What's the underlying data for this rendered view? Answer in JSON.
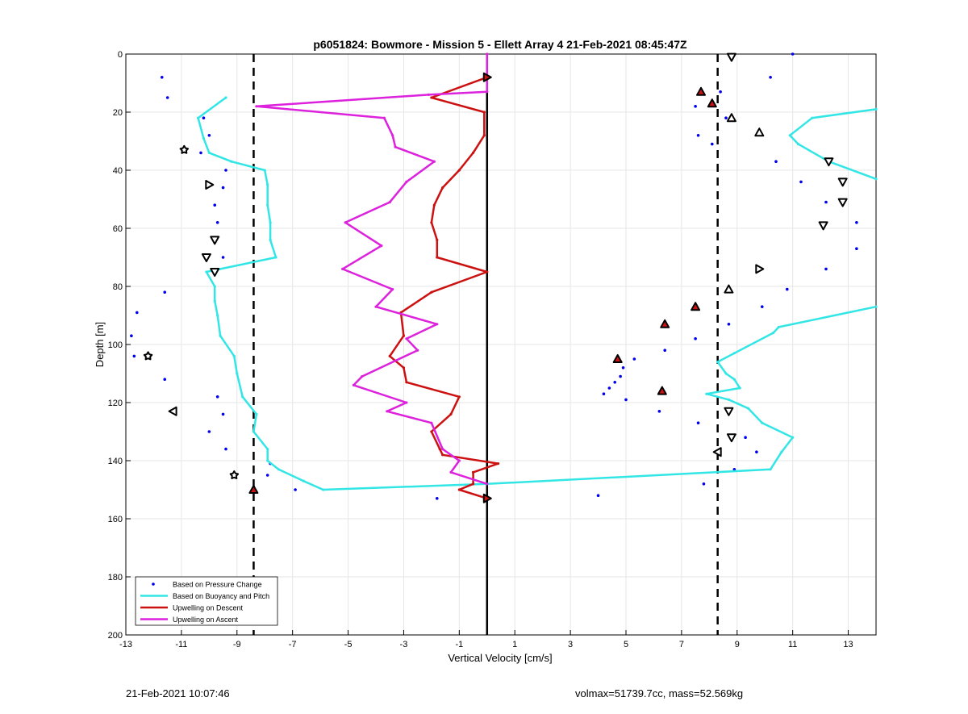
{
  "chart_data": {
    "type": "scatter+line",
    "title": "p6051824: Bowmore - Mission 5 - Ellett Array 4 21-Feb-2021 08:45:47Z",
    "xlabel": "Vertical Velocity [cm/s]",
    "ylabel": "Depth [m]",
    "xlim": [
      -13,
      14
    ],
    "ylim": [
      0,
      200
    ],
    "y_reversed": true,
    "grid": true,
    "xticks": [
      -13,
      -11,
      -9,
      -7,
      -5,
      -3,
      -1,
      1,
      3,
      5,
      7,
      9,
      11,
      13
    ],
    "yticks": [
      0,
      20,
      40,
      60,
      80,
      100,
      120,
      140,
      160,
      180,
      200
    ],
    "legend": {
      "placement": "bottom-left",
      "entries": [
        "Based on Pressure Change",
        "Based on Buoyancy and Pitch",
        "Upwelling on Descent",
        "Upwelling on Ascent"
      ]
    },
    "colors": {
      "pressure": "#0000ee",
      "buoyancy": "#33e6e6",
      "descent": "#cc1111",
      "ascent": "#dd22dd",
      "reference": "#000000"
    },
    "reference_lines": {
      "solid_x": 0,
      "dashed_x": [
        -8.4,
        8.3
      ]
    },
    "series": [
      {
        "name": "Based on Pressure Change",
        "style": "dots",
        "points": [
          [
            -11.7,
            8
          ],
          [
            -11.5,
            15
          ],
          [
            -10.2,
            22
          ],
          [
            -10,
            28
          ],
          [
            -10.3,
            34
          ],
          [
            -9.4,
            40
          ],
          [
            -9.5,
            46
          ],
          [
            -9.8,
            52
          ],
          [
            -9.7,
            58
          ],
          [
            -9.5,
            70
          ],
          [
            -11.6,
            82
          ],
          [
            -12.6,
            89
          ],
          [
            -12.8,
            97
          ],
          [
            -12.7,
            104
          ],
          [
            -11.6,
            112
          ],
          [
            -9.7,
            118
          ],
          [
            -9.5,
            124
          ],
          [
            -10,
            130
          ],
          [
            -9.4,
            136
          ],
          [
            -7.8,
            141
          ],
          [
            -7.9,
            145
          ],
          [
            -6.9,
            150
          ],
          [
            -1.8,
            153
          ],
          [
            4,
            152
          ],
          [
            11,
            0
          ],
          [
            10.2,
            8
          ],
          [
            8.4,
            13
          ],
          [
            7.5,
            18
          ],
          [
            8.6,
            22
          ],
          [
            7.6,
            28
          ],
          [
            8.1,
            31
          ],
          [
            10.4,
            37
          ],
          [
            11.3,
            44
          ],
          [
            12.2,
            51
          ],
          [
            13.3,
            58
          ],
          [
            13.3,
            67
          ],
          [
            12.2,
            74
          ],
          [
            10.8,
            81
          ],
          [
            9.9,
            87
          ],
          [
            8.7,
            93
          ],
          [
            7.5,
            98
          ],
          [
            6.4,
            102
          ],
          [
            5.3,
            105
          ],
          [
            4.9,
            108
          ],
          [
            4.8,
            111
          ],
          [
            4.6,
            113
          ],
          [
            4.4,
            115
          ],
          [
            4.2,
            117
          ],
          [
            5,
            119
          ],
          [
            6.2,
            123
          ],
          [
            7.6,
            127
          ],
          [
            9.3,
            132
          ],
          [
            9.7,
            137
          ],
          [
            8.9,
            143
          ],
          [
            7.8,
            148
          ]
        ]
      },
      {
        "name": "Based on Buoyancy and Pitch",
        "style": "line",
        "segments": [
          [
            [
              -9.4,
              15
            ],
            [
              -10.4,
              22
            ],
            [
              -10.2,
              29
            ],
            [
              -10,
              34
            ],
            [
              -9.2,
              37
            ],
            [
              -8,
              40
            ],
            [
              -7.9,
              45
            ],
            [
              -7.9,
              52
            ],
            [
              -7.8,
              58
            ],
            [
              -7.8,
              64
            ],
            [
              -7.6,
              70
            ],
            [
              -10.1,
              75
            ],
            [
              -9.8,
              80
            ],
            [
              -9.8,
              85
            ],
            [
              -9.7,
              90
            ],
            [
              -9.6,
              97
            ],
            [
              -9.1,
              104
            ],
            [
              -9,
              110
            ],
            [
              -8.8,
              118
            ],
            [
              -8.3,
              124
            ],
            [
              -8.4,
              130
            ],
            [
              -7.9,
              136
            ],
            [
              -7.9,
              140
            ],
            [
              -7.5,
              143
            ],
            [
              -6.6,
              147
            ],
            [
              -5.9,
              150
            ],
            [
              0,
              148
            ],
            [
              10.2,
              143
            ],
            [
              10.6,
              137
            ],
            [
              11,
              132
            ],
            [
              9.9,
              127
            ],
            [
              9.4,
              122
            ],
            [
              8.7,
              119
            ],
            [
              7.9,
              117
            ],
            [
              9.1,
              115
            ],
            [
              8.9,
              112
            ],
            [
              8.6,
              110
            ],
            [
              8.3,
              106
            ],
            [
              8.9,
              103
            ],
            [
              10.3,
              96
            ],
            [
              10.5,
              94
            ],
            [
              14,
              87
            ]
          ],
          [
            [
              14,
              43
            ],
            [
              12.3,
              37
            ],
            [
              11.2,
              31
            ],
            [
              10.9,
              28
            ],
            [
              11.7,
              22
            ],
            [
              14,
              19
            ]
          ]
        ]
      },
      {
        "name": "Upwelling on Descent",
        "style": "line",
        "points": [
          [
            0,
            8
          ],
          [
            -2,
            15
          ],
          [
            -0.1,
            20
          ],
          [
            -0.1,
            28
          ],
          [
            -0.5,
            34
          ],
          [
            -1,
            40
          ],
          [
            -1.6,
            46
          ],
          [
            -1.9,
            52
          ],
          [
            -2,
            58
          ],
          [
            -1.8,
            64
          ],
          [
            -1.8,
            70
          ],
          [
            0,
            75
          ],
          [
            -2,
            82
          ],
          [
            -3.1,
            89
          ],
          [
            -3,
            97
          ],
          [
            -3.5,
            104
          ],
          [
            -3,
            108
          ],
          [
            -2.9,
            113
          ],
          [
            -1,
            118
          ],
          [
            -1.3,
            124
          ],
          [
            -2,
            130
          ],
          [
            -1.7,
            136
          ],
          [
            -1.6,
            138
          ],
          [
            0.4,
            141
          ],
          [
            -0.5,
            144
          ],
          [
            -0.5,
            148
          ],
          [
            -1,
            150
          ],
          [
            0,
            153
          ]
        ]
      },
      {
        "name": "Upwelling on Ascent",
        "style": "line",
        "points": [
          [
            0,
            0
          ],
          [
            0,
            13
          ],
          [
            -2.1,
            14
          ],
          [
            -8.3,
            18
          ],
          [
            -3.7,
            22
          ],
          [
            -3.4,
            28
          ],
          [
            -3.3,
            32
          ],
          [
            -1.9,
            37
          ],
          [
            -2.9,
            44
          ],
          [
            -3.5,
            51
          ],
          [
            -5.1,
            58
          ],
          [
            -3.8,
            66
          ],
          [
            -5.2,
            74
          ],
          [
            -3.4,
            81
          ],
          [
            -4,
            87
          ],
          [
            -1.8,
            93
          ],
          [
            -2.9,
            98
          ],
          [
            -2.5,
            102
          ],
          [
            -4.5,
            111
          ],
          [
            -4.8,
            114
          ],
          [
            -2.9,
            120
          ],
          [
            -3.6,
            123
          ],
          [
            -2,
            127
          ],
          [
            -1.6,
            136
          ],
          [
            -1,
            140
          ],
          [
            -1.3,
            144
          ],
          [
            0,
            148
          ]
        ]
      }
    ],
    "markers": [
      {
        "shape": "tri-down",
        "fill": "#ffffff",
        "points": [
          [
            8.8,
            1
          ],
          [
            12.3,
            37
          ],
          [
            12.8,
            44
          ],
          [
            12.8,
            51
          ],
          [
            12.1,
            59
          ],
          [
            8.8,
            132
          ]
        ]
      },
      {
        "shape": "tri-up",
        "fill": "#ffffff",
        "points": [
          [
            8.8,
            22
          ],
          [
            9.8,
            27
          ],
          [
            8.7,
            81
          ]
        ]
      },
      {
        "shape": "tri-right",
        "fill": "#ffffff",
        "points": [
          [
            -10,
            45
          ],
          [
            9.8,
            74
          ]
        ]
      },
      {
        "shape": "tri-down",
        "fill": "#ffffff",
        "points": [
          [
            -9.8,
            64
          ],
          [
            -10.1,
            70
          ],
          [
            -9.8,
            75
          ],
          [
            8.7,
            123
          ]
        ]
      },
      {
        "shape": "tri-left",
        "fill": "#ffffff",
        "points": [
          [
            -11.3,
            123
          ],
          [
            8.3,
            137
          ]
        ]
      },
      {
        "shape": "tri-up",
        "fill": "#cc1111",
        "points": [
          [
            7.7,
            13
          ],
          [
            8.1,
            17
          ],
          [
            7.5,
            87
          ],
          [
            6.4,
            93
          ],
          [
            4.7,
            105
          ],
          [
            6.3,
            116
          ]
        ]
      },
      {
        "shape": "tri-up",
        "fill": "#cc1111",
        "points": [
          [
            -8.4,
            150
          ]
        ]
      },
      {
        "shape": "tri-right",
        "fill": "#cc1111",
        "points": [
          [
            0,
            8
          ],
          [
            0,
            153
          ]
        ]
      },
      {
        "shape": "star",
        "fill": "#ffffff",
        "points": [
          [
            -10.9,
            33
          ],
          [
            -12.2,
            104
          ],
          [
            -9.1,
            145
          ]
        ]
      }
    ]
  },
  "footer": {
    "timestamp": "21-Feb-2021 10:07:46",
    "stats": "volmax=51739.7cc, mass=52.569kg"
  }
}
